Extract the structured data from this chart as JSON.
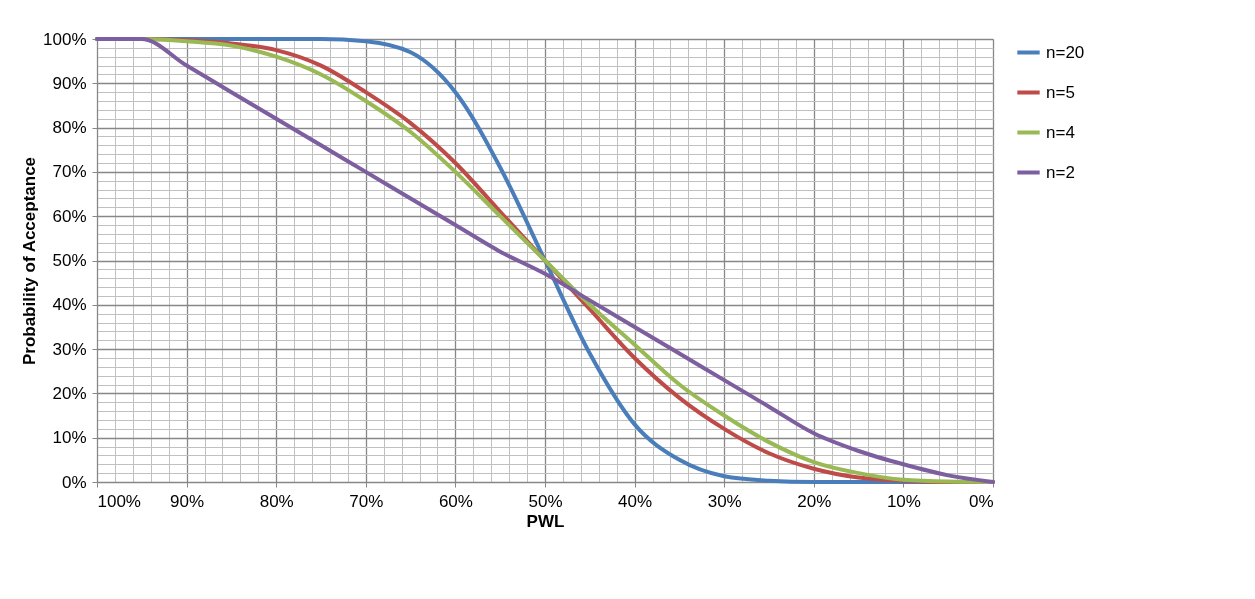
{
  "chart_data": {
    "type": "line",
    "xlabel": "PWL",
    "ylabel": "Probability of Acceptance",
    "x": [
      100,
      95,
      90,
      85,
      80,
      75,
      70,
      65,
      60,
      55,
      50,
      45,
      40,
      35,
      30,
      25,
      20,
      15,
      10,
      5,
      0
    ],
    "series": [
      {
        "name": "n=20",
        "color": "#4a7ebb",
        "values": [
          100,
          100,
          100,
          100,
          100,
          100,
          99.5,
          97,
          88,
          71,
          50,
          29,
          13,
          5,
          1.3,
          0.3,
          0,
          0,
          0,
          0,
          0
        ]
      },
      {
        "name": "n=5",
        "color": "#be4b48",
        "values": [
          100,
          100,
          99.7,
          99,
          97.5,
          94,
          88,
          81,
          72,
          61,
          50,
          39,
          28,
          19,
          12,
          6.5,
          3,
          1,
          0.3,
          0,
          0
        ]
      },
      {
        "name": "n=4",
        "color": "#98b954",
        "values": [
          100,
          100,
          99.5,
          98.5,
          96,
          92,
          86,
          79,
          70,
          60,
          50,
          40,
          31,
          22,
          15,
          9,
          4.5,
          2,
          0.5,
          0.1,
          0
        ]
      },
      {
        "name": "n=2",
        "color": "#7d5fa0",
        "values": [
          100,
          100,
          94,
          88,
          82,
          76,
          70,
          64,
          58,
          52,
          47,
          41,
          35,
          29,
          23,
          17,
          11,
          7,
          4,
          1.5,
          0
        ]
      }
    ],
    "xlim": [
      100,
      0
    ],
    "xticks": [
      {
        "value": 100,
        "label": "100%"
      },
      {
        "value": 98,
        "label": null
      },
      {
        "value": 96,
        "label": null
      },
      {
        "value": 94,
        "label": null
      },
      {
        "value": 92,
        "label": null
      },
      {
        "value": 90,
        "label": "90%"
      },
      {
        "value": 88,
        "label": null
      },
      {
        "value": 86,
        "label": null
      },
      {
        "value": 84,
        "label": null
      },
      {
        "value": 82,
        "label": null
      },
      {
        "value": 80,
        "label": "80%"
      },
      {
        "value": 78,
        "label": null
      },
      {
        "value": 76,
        "label": null
      },
      {
        "value": 74,
        "label": null
      },
      {
        "value": 72,
        "label": null
      },
      {
        "value": 70,
        "label": "70%"
      },
      {
        "value": 68,
        "label": null
      },
      {
        "value": 66,
        "label": null
      },
      {
        "value": 64,
        "label": null
      },
      {
        "value": 62,
        "label": null
      },
      {
        "value": 60,
        "label": "60%"
      },
      {
        "value": 58,
        "label": null
      },
      {
        "value": 56,
        "label": null
      },
      {
        "value": 54,
        "label": null
      },
      {
        "value": 52,
        "label": null
      },
      {
        "value": 50,
        "label": "50%"
      },
      {
        "value": 48,
        "label": null
      },
      {
        "value": 46,
        "label": null
      },
      {
        "value": 44,
        "label": null
      },
      {
        "value": 42,
        "label": null
      },
      {
        "value": 40,
        "label": "40%"
      },
      {
        "value": 38,
        "label": null
      },
      {
        "value": 36,
        "label": null
      },
      {
        "value": 34,
        "label": null
      },
      {
        "value": 32,
        "label": null
      },
      {
        "value": 30,
        "label": "30%"
      },
      {
        "value": 28,
        "label": null
      },
      {
        "value": 26,
        "label": null
      },
      {
        "value": 24,
        "label": null
      },
      {
        "value": 22,
        "label": null
      },
      {
        "value": 20,
        "label": "20%"
      },
      {
        "value": 18,
        "label": null
      },
      {
        "value": 16,
        "label": null
      },
      {
        "value": 14,
        "label": null
      },
      {
        "value": 12,
        "label": null
      },
      {
        "value": 10,
        "label": "10%"
      },
      {
        "value": 8,
        "label": null
      },
      {
        "value": 6,
        "label": null
      },
      {
        "value": 4,
        "label": null
      },
      {
        "value": 2,
        "label": null
      },
      {
        "value": 0,
        "label": "0%"
      }
    ],
    "ylim": [
      0,
      100
    ],
    "yticks": [
      {
        "value": 0,
        "label": "0%"
      },
      {
        "value": 2,
        "label": null
      },
      {
        "value": 4,
        "label": null
      },
      {
        "value": 6,
        "label": null
      },
      {
        "value": 8,
        "label": null
      },
      {
        "value": 10,
        "label": "10%"
      },
      {
        "value": 12,
        "label": null
      },
      {
        "value": 14,
        "label": null
      },
      {
        "value": 16,
        "label": null
      },
      {
        "value": 18,
        "label": null
      },
      {
        "value": 20,
        "label": "20%"
      },
      {
        "value": 22,
        "label": null
      },
      {
        "value": 24,
        "label": null
      },
      {
        "value": 26,
        "label": null
      },
      {
        "value": 28,
        "label": null
      },
      {
        "value": 30,
        "label": "30%"
      },
      {
        "value": 32,
        "label": null
      },
      {
        "value": 34,
        "label": null
      },
      {
        "value": 36,
        "label": null
      },
      {
        "value": 38,
        "label": null
      },
      {
        "value": 40,
        "label": "40%"
      },
      {
        "value": 42,
        "label": null
      },
      {
        "value": 44,
        "label": null
      },
      {
        "value": 46,
        "label": null
      },
      {
        "value": 48,
        "label": null
      },
      {
        "value": 50,
        "label": "50%"
      },
      {
        "value": 52,
        "label": null
      },
      {
        "value": 54,
        "label": null
      },
      {
        "value": 56,
        "label": null
      },
      {
        "value": 58,
        "label": null
      },
      {
        "value": 60,
        "label": "60%"
      },
      {
        "value": 62,
        "label": null
      },
      {
        "value": 64,
        "label": null
      },
      {
        "value": 66,
        "label": null
      },
      {
        "value": 68,
        "label": null
      },
      {
        "value": 70,
        "label": "70%"
      },
      {
        "value": 72,
        "label": null
      },
      {
        "value": 74,
        "label": null
      },
      {
        "value": 76,
        "label": null
      },
      {
        "value": 78,
        "label": null
      },
      {
        "value": 80,
        "label": "80%"
      },
      {
        "value": 82,
        "label": null
      },
      {
        "value": 84,
        "label": null
      },
      {
        "value": 86,
        "label": null
      },
      {
        "value": 88,
        "label": null
      },
      {
        "value": 90,
        "label": "90%"
      },
      {
        "value": 92,
        "label": null
      },
      {
        "value": 94,
        "label": null
      },
      {
        "value": 96,
        "label": null
      },
      {
        "value": 98,
        "label": null
      },
      {
        "value": 100,
        "label": "100%"
      }
    ],
    "grid": true,
    "legend": "right",
    "marker": "none",
    "line_style": "solid"
  }
}
